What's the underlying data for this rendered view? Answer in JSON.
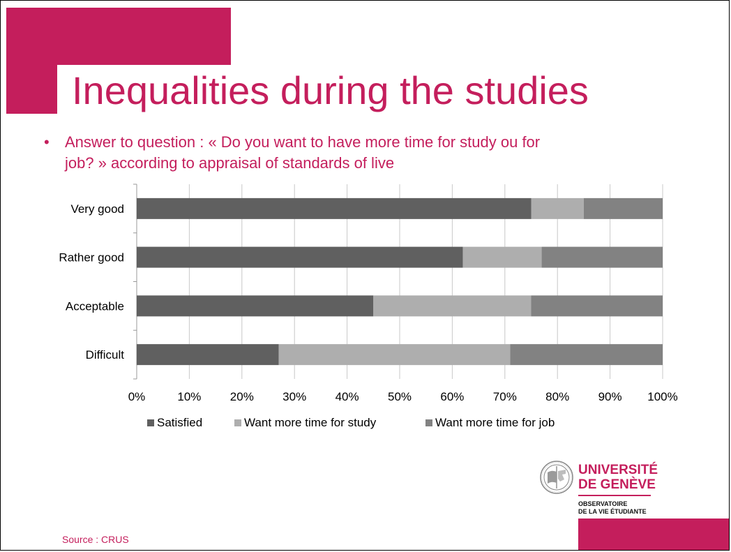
{
  "colors": {
    "accent": "#C41E5C",
    "satisfied": "#606060",
    "study": "#AEAEAE",
    "job": "#828282",
    "grid": "#C8C8C8",
    "text": "#000000"
  },
  "slide": {
    "title": "Inequalities during the studies",
    "bullet_marker": "•",
    "bullet_line1": "Answer to question : « Do you want to have more time for study ou for",
    "bullet_line2": "job? » according to  appraisal of standards of live",
    "source": "Source : CRUS"
  },
  "logo": {
    "name_line1": "UNIVERSITÉ",
    "name_line2": "DE GENÈVE",
    "sub_line1": "OBSERVATOIRE",
    "sub_line2": "DE LA VIE ÉTUDIANTE",
    "icon": "seal-icon"
  },
  "chart_data": {
    "type": "bar",
    "orientation": "horizontal",
    "stacked": "percent",
    "categories": [
      "Very good",
      "Rather good",
      "Acceptable",
      "Difficult"
    ],
    "series": [
      {
        "name": "Satisfied",
        "values": [
          75,
          62,
          45,
          27
        ]
      },
      {
        "name": "Want more time for study",
        "values": [
          10,
          15,
          30,
          44
        ]
      },
      {
        "name": "Want more time for job",
        "values": [
          15,
          23,
          25,
          29
        ]
      }
    ],
    "xlim": [
      0,
      100
    ],
    "xticks": [
      "0%",
      "10%",
      "20%",
      "30%",
      "40%",
      "50%",
      "60%",
      "70%",
      "80%",
      "90%",
      "100%"
    ],
    "grid": true,
    "legend_position": "bottom"
  }
}
